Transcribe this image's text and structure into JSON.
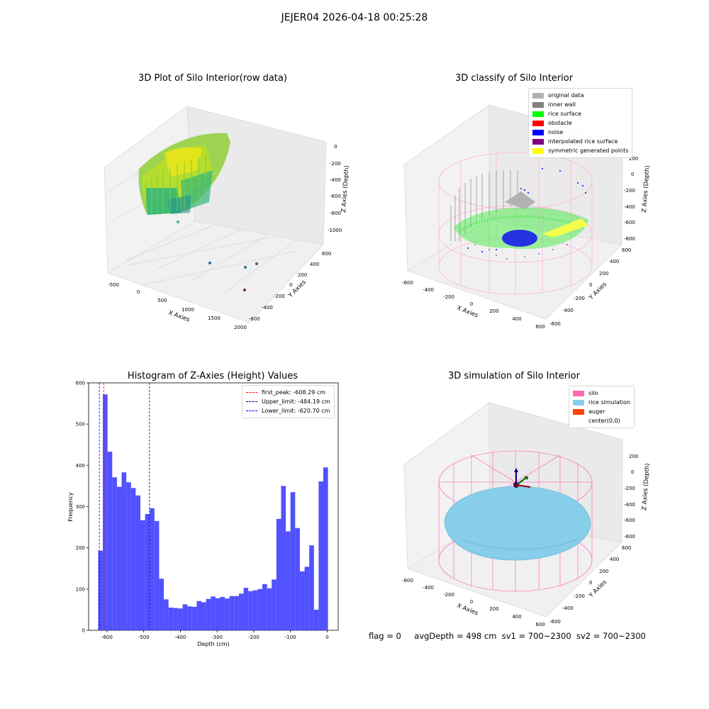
{
  "suptitle": "JEJER04 2026-04-18 00:25:28",
  "panels": {
    "raw": {
      "title": "3D Plot of Silo Interior(row data)",
      "xlabel": "X Axies",
      "ylabel": "Y Axies",
      "zlabel": "Z Axies (Depth)",
      "xticks": [
        "-500",
        "0",
        "500",
        "1000",
        "1500",
        "2000"
      ],
      "yticks": [
        "600",
        "400",
        "200",
        "0",
        "-200",
        "-400",
        "-600"
      ],
      "zticks": [
        "0",
        "-200",
        "-400",
        "-600",
        "-800",
        "-1000"
      ]
    },
    "classify": {
      "title": "3D classify of Silo Interior",
      "xlabel": "X Axies",
      "ylabel": "Y Axies",
      "zlabel": "Z Axies (Depth)",
      "xticks": [
        "-600",
        "-400",
        "-200",
        "0",
        "200",
        "400",
        "600"
      ],
      "yticks": [
        "600",
        "400",
        "200",
        "0",
        "-200",
        "-400",
        "-600"
      ],
      "zticks": [
        "200",
        "0",
        "-200",
        "-400",
        "-600",
        "-800"
      ],
      "legend": [
        {
          "label": "original data",
          "color": "#b2b2b2"
        },
        {
          "label": "inner wall",
          "color": "#808080"
        },
        {
          "label": "rice surface",
          "color": "#00ff00"
        },
        {
          "label": "obstacle",
          "color": "#ff0000"
        },
        {
          "label": "noise",
          "color": "#0000ff"
        },
        {
          "label": "interpolated rice surface",
          "color": "#800080"
        },
        {
          "label": "symmetric generated points",
          "color": "#ffff00"
        }
      ]
    },
    "histogram": {
      "title": "Histogram of Z-Axies (Height) Values",
      "xlabel": "Depth (cm)",
      "ylabel": "Frequency",
      "legend": [
        {
          "label": "first_peak: -608.29 cm",
          "color": "#ff0000"
        },
        {
          "label": "Upper_limit: -484.19 cm",
          "color": "#00008b"
        },
        {
          "label": "Lower_limit: -620.70 cm",
          "color": "#0000ff"
        }
      ]
    },
    "simulation": {
      "title": "3D simulation of Silo Interior",
      "xlabel": "X Axies",
      "ylabel": "Y Axies",
      "zlabel": "Z Axies (Depth)",
      "xticks": [
        "-600",
        "-400",
        "-200",
        "0",
        "200",
        "400",
        "600"
      ],
      "yticks": [
        "600",
        "400",
        "200",
        "0",
        "-200",
        "-400",
        "-600"
      ],
      "zticks": [
        "200",
        "0",
        "-200",
        "-400",
        "-600",
        "-800"
      ],
      "legend": [
        {
          "label": "silo",
          "color": "#ff69b4"
        },
        {
          "label": "rice simulation",
          "color": "#87ceeb"
        },
        {
          "label": "auger",
          "color": "#ff4500"
        },
        {
          "label": "center(0,0)",
          "color": ""
        }
      ]
    }
  },
  "status": {
    "flag": "flag = 0",
    "avg_depth": "avgDepth = 498 cm",
    "sv1": "sv1 = 700~2300",
    "sv2": "sv2 = 700~2300"
  },
  "chart_data": [
    {
      "type": "scatter",
      "title": "3D Plot of Silo Interior(row data)",
      "xlabel": "X Axies",
      "ylabel": "Y Axies",
      "zlabel": "Z Axies (Depth)",
      "xlim": [
        -600,
        2000
      ],
      "ylim": [
        -600,
        600
      ],
      "zlim": [
        -1100,
        50
      ],
      "note_points": [
        {
          "x": 900,
          "y": -500,
          "z": -1000
        },
        {
          "x": 1500,
          "y": -250,
          "z": -1000
        },
        {
          "x": 1700,
          "y": -350,
          "z": -1000
        },
        {
          "x": 1800,
          "y": -650,
          "z": -1050
        },
        {
          "x": 300,
          "y": 400,
          "z": -900
        }
      ]
    },
    {
      "type": "scatter",
      "title": "3D classify of Silo Interior",
      "xlim": [
        -600,
        600
      ],
      "ylim": [
        -600,
        600
      ],
      "zlim": [
        -850,
        250
      ],
      "series": [
        {
          "name": "original data"
        },
        {
          "name": "inner wall"
        },
        {
          "name": "rice surface"
        },
        {
          "name": "obstacle"
        },
        {
          "name": "noise"
        },
        {
          "name": "interpolated rice surface"
        },
        {
          "name": "symmetric generated points"
        }
      ]
    },
    {
      "type": "bar",
      "title": "Histogram of Z-Axies (Height) Values",
      "xlabel": "Depth (cm)",
      "ylabel": "Frequency",
      "xlim": [
        -650,
        30
      ],
      "ylim": [
        0,
        600
      ],
      "xticks": [
        -600,
        -500,
        -400,
        -300,
        -200,
        -100,
        0
      ],
      "yticks": [
        0,
        100,
        200,
        300,
        400,
        500,
        600
      ],
      "bin_start": -624,
      "bin_width": 12.78,
      "values": [
        193,
        572,
        433,
        371,
        348,
        383,
        359,
        345,
        327,
        267,
        282,
        296,
        265,
        125,
        75,
        55,
        54,
        53,
        63,
        58,
        57,
        71,
        68,
        76,
        82,
        78,
        81,
        77,
        83,
        83,
        89,
        103,
        95,
        97,
        100,
        112,
        102,
        123,
        270,
        350,
        240,
        335,
        248,
        143,
        154,
        206,
        50,
        361,
        395
      ],
      "vlines": [
        {
          "name": "first_peak: -608.29 cm",
          "x": -608.29,
          "color": "#ff0000"
        },
        {
          "name": "Upper_limit: -484.19 cm",
          "x": -484.19,
          "color": "#00008b"
        },
        {
          "name": "Lower_limit: -620.70 cm",
          "x": -620.7,
          "color": "#0000ff"
        }
      ],
      "bar_color": "#4b4bff"
    },
    {
      "type": "scatter",
      "title": "3D simulation of Silo Interior",
      "xlim": [
        -600,
        600
      ],
      "ylim": [
        -600,
        600
      ],
      "zlim": [
        -850,
        250
      ],
      "series": [
        {
          "name": "silo"
        },
        {
          "name": "rice simulation"
        },
        {
          "name": "auger"
        },
        {
          "name": "center(0,0)"
        }
      ]
    }
  ]
}
